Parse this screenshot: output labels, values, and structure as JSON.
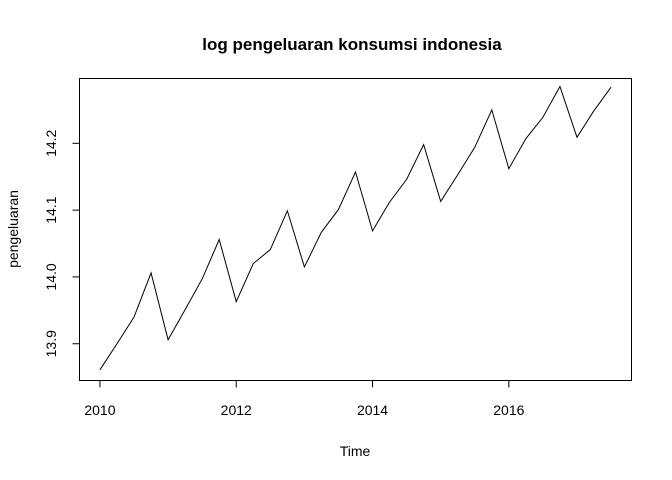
{
  "chart_data": {
    "type": "line",
    "title": "log pengeluaran konsumsi indonesia",
    "xlabel": "Time",
    "ylabel": "pengeluaran",
    "xlim": [
      2009.7,
      2017.8
    ],
    "ylim": [
      13.845,
      14.297
    ],
    "x_ticks": [
      2010,
      2012,
      2014,
      2016
    ],
    "y_ticks": [
      13.9,
      14.0,
      14.1,
      14.2
    ],
    "x_tick_labels": [
      "2010",
      "2012",
      "2014",
      "2016"
    ],
    "y_tick_labels": [
      "13.9",
      "14.0",
      "14.1",
      "14.2"
    ],
    "grid": false,
    "series": [
      {
        "x": [
          2010.0,
          2010.25,
          2010.5,
          2010.75,
          2011.0,
          2011.25,
          2011.5,
          2011.75,
          2012.0,
          2012.25,
          2012.5,
          2012.75,
          2013.0,
          2013.25,
          2013.5,
          2013.75,
          2014.0,
          2014.25,
          2014.5,
          2014.75,
          2015.0,
          2015.25,
          2015.5,
          2015.75,
          2016.0,
          2016.25,
          2016.5,
          2016.75,
          2017.0,
          2017.25,
          2017.5
        ],
        "values": [
          13.861,
          13.9,
          13.94,
          14.006,
          13.906,
          13.951,
          13.997,
          14.056,
          13.963,
          14.02,
          14.041,
          14.099,
          14.015,
          14.067,
          14.101,
          14.157,
          14.069,
          14.112,
          14.146,
          14.198,
          14.113,
          14.153,
          14.194,
          14.25,
          14.162,
          14.207,
          14.239,
          14.285,
          14.209,
          14.249,
          14.284
        ]
      }
    ]
  }
}
